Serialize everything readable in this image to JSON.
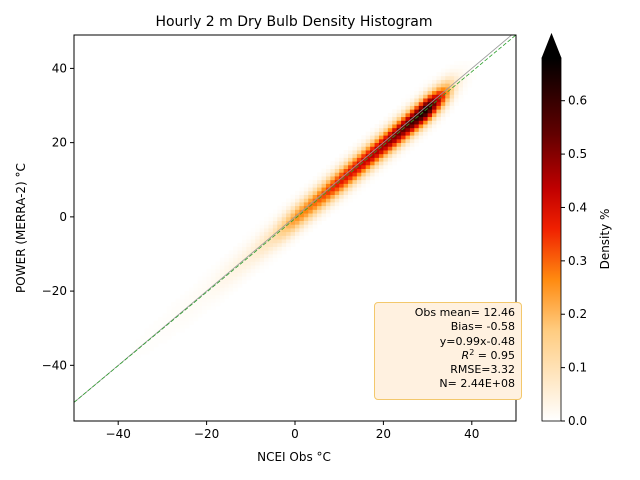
{
  "colors": {
    "identity_line": "#9a9a9a",
    "regression_line": "#2ca02c",
    "stats_box_fill": "#fff1e0",
    "stats_box_border": "#f3c86c",
    "colormap": "gist_heat_r"
  },
  "chart_data": {
    "type": "heatmap",
    "title": "Hourly 2 m Dry Bulb Density Histogram",
    "xlabel": "NCEI Obs °C",
    "ylabel": "POWER (MERRA-2) °C",
    "xlim": [
      -50,
      50
    ],
    "ylim": [
      -55,
      49
    ],
    "xticks": [
      -40,
      -20,
      0,
      20,
      40
    ],
    "yticks": [
      -40,
      -20,
      0,
      20,
      40
    ],
    "grid": false,
    "density_ridge": {
      "x": [
        -40,
        -30,
        -20,
        -10,
        -5,
        0,
        5,
        10,
        15,
        20,
        25,
        28,
        30,
        33,
        36
      ],
      "density_percent": [
        0.002,
        0.006,
        0.015,
        0.05,
        0.1,
        0.25,
        0.3,
        0.38,
        0.42,
        0.47,
        0.55,
        0.62,
        0.65,
        0.4,
        0.1
      ]
    },
    "regression_line": {
      "slope": 0.99,
      "intercept": -0.48
    },
    "identity_line": {
      "slope": 1,
      "intercept": 0
    },
    "colorbar": {
      "label": "Density %",
      "range": [
        0,
        0.68
      ],
      "ticks": [
        "0.0",
        "0.1",
        "0.2",
        "0.3",
        "0.4",
        "0.5",
        "0.6"
      ],
      "extend": "max"
    },
    "stats": {
      "obs_mean": "Obs mean= 12.46",
      "bias": "Bias= -0.58",
      "equation": "y=0.99x-0.48",
      "r2_value": " = 0.95",
      "rmse": "RMSE=3.32",
      "n": "N= 2.44E+08"
    }
  }
}
